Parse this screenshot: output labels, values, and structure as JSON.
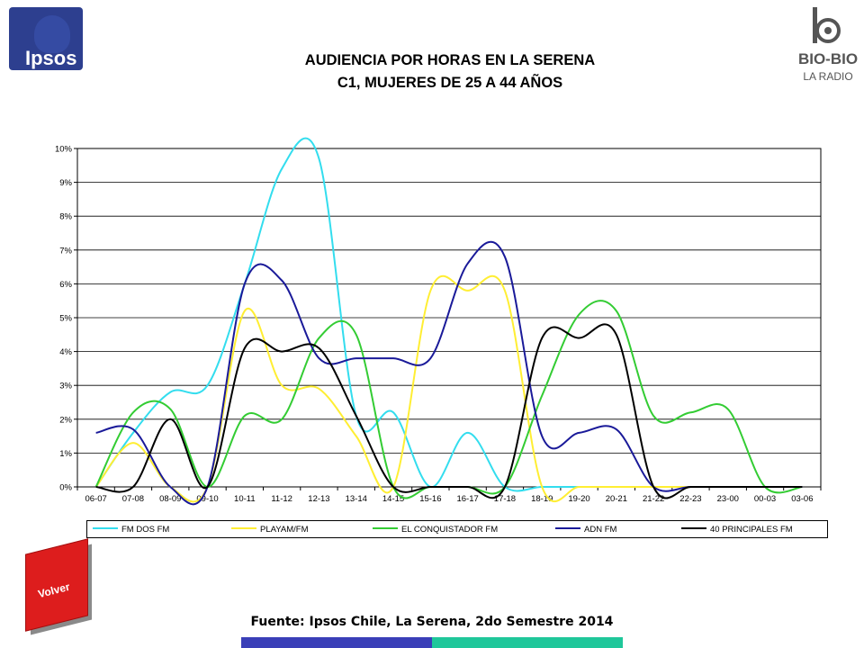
{
  "header": {
    "logo_left": "Ipsos",
    "title_line1": "AUDIENCIA POR HORAS EN LA SERENA",
    "title_line2": "C1, MUJERES DE 25 A 44 AÑOS",
    "logo_right_name": "BIO-BIO",
    "logo_right_sub": "LA RADIO"
  },
  "chart_data": {
    "type": "line",
    "title": "AUDIENCIA POR HORAS EN LA SERENA C1, MUJERES DE 25 A 44 AÑOS",
    "xlabel": "",
    "ylabel": "",
    "ylim": [
      0,
      10
    ],
    "ytick_labels": [
      "0%",
      "1%",
      "2%",
      "3%",
      "4%",
      "5%",
      "6%",
      "7%",
      "8%",
      "9%",
      "10%"
    ],
    "grid": true,
    "legend_position": "bottom",
    "categories": [
      "06-07",
      "07-08",
      "08-09",
      "09-10",
      "10-11",
      "11-12",
      "12-13",
      "13-14",
      "14-15",
      "15-16",
      "16-17",
      "17-18",
      "18-19",
      "19-20",
      "20-21",
      "21-22",
      "22-23",
      "23-00",
      "00-03",
      "03-06"
    ],
    "series": [
      {
        "name": "FM DOS FM",
        "color": "#33ddee",
        "values": [
          0,
          1.6,
          2.8,
          3.0,
          6.0,
          9.4,
          9.7,
          2.1,
          2.2,
          0,
          1.6,
          0,
          0,
          0,
          0,
          0,
          0,
          0,
          0,
          0
        ]
      },
      {
        "name": "PLAYAM/FM",
        "color": "#ffee33",
        "values": [
          0,
          1.3,
          0,
          0,
          5.2,
          3.0,
          2.9,
          1.5,
          0,
          5.8,
          5.8,
          5.8,
          0,
          0,
          0,
          0,
          0,
          0,
          0,
          0
        ]
      },
      {
        "name": "EL CONQUISTADOR FM",
        "color": "#33cc33",
        "values": [
          0,
          2.2,
          2.3,
          0,
          2.1,
          2.0,
          4.4,
          4.5,
          0,
          0,
          0,
          0,
          2.7,
          5.1,
          5.2,
          2.1,
          2.2,
          2.3,
          0,
          0
        ]
      },
      {
        "name": "ADN FM",
        "color": "#1a1a99",
        "values": [
          1.6,
          1.7,
          0,
          0,
          6.0,
          6.1,
          3.8,
          3.8,
          3.8,
          3.8,
          6.6,
          6.8,
          1.5,
          1.6,
          1.7,
          0,
          0,
          0,
          0,
          0
        ]
      },
      {
        "name": "40 PRINCIPALES FM",
        "color": "#000000",
        "values": [
          0,
          0,
          2.0,
          0,
          4.1,
          4.0,
          4.1,
          2.1,
          0,
          0,
          0,
          0,
          4.4,
          4.4,
          4.5,
          0,
          0,
          0,
          0,
          0
        ]
      }
    ]
  },
  "footer": {
    "volver_label": "Volver",
    "source": "Fuente: Ipsos Chile, La Serena, 2do Semestre 2014"
  }
}
